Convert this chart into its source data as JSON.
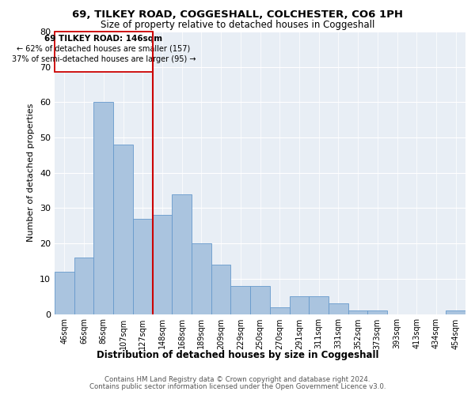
{
  "title": "69, TILKEY ROAD, COGGESHALL, COLCHESTER, CO6 1PH",
  "subtitle": "Size of property relative to detached houses in Coggeshall",
  "xlabel": "Distribution of detached houses by size in Coggeshall",
  "ylabel": "Number of detached properties",
  "bar_labels": [
    "46sqm",
    "66sqm",
    "86sqm",
    "107sqm",
    "127sqm",
    "148sqm",
    "168sqm",
    "189sqm",
    "209sqm",
    "229sqm",
    "250sqm",
    "270sqm",
    "291sqm",
    "311sqm",
    "331sqm",
    "352sqm",
    "373sqm",
    "393sqm",
    "413sqm",
    "434sqm",
    "454sqm"
  ],
  "bar_values": [
    12,
    16,
    60,
    48,
    27,
    28,
    34,
    20,
    14,
    8,
    8,
    2,
    5,
    5,
    3,
    1,
    1,
    0,
    0,
    0,
    1
  ],
  "bar_color": "#aac4df",
  "bar_edge_color": "#6699cc",
  "vline_x": 4.5,
  "vline_color": "#cc0000",
  "annotation_title": "69 TILKEY ROAD: 146sqm",
  "annotation_line1": "← 62% of detached houses are smaller (157)",
  "annotation_line2": "37% of semi-detached houses are larger (95) →",
  "annotation_box_color": "#cc0000",
  "ylim": [
    0,
    80
  ],
  "yticks": [
    0,
    10,
    20,
    30,
    40,
    50,
    60,
    70,
    80
  ],
  "footer1": "Contains HM Land Registry data © Crown copyright and database right 2024.",
  "footer2": "Contains public sector information licensed under the Open Government Licence v3.0.",
  "bg_color": "#e8eef5",
  "fig_bg_color": "#ffffff"
}
